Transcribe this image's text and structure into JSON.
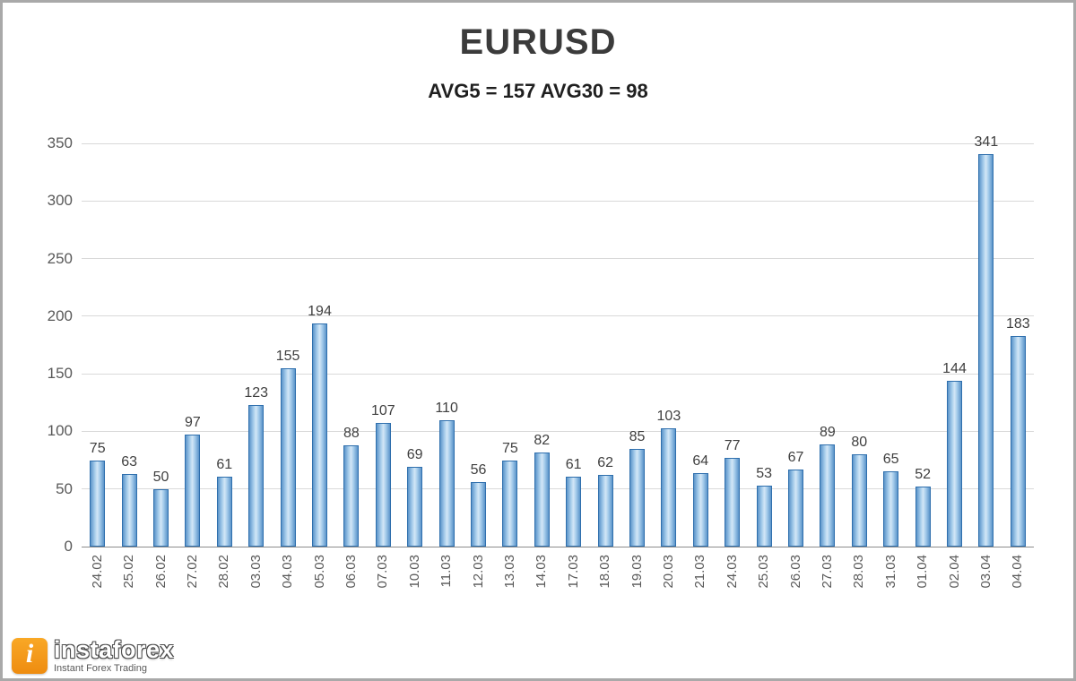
{
  "chart_data": {
    "type": "bar",
    "title": "EURUSD",
    "subtitle": "AVG5 = 157 AVG30 = 98",
    "categories": [
      "24.02",
      "25.02",
      "26.02",
      "27.02",
      "28.02",
      "03.03",
      "04.03",
      "05.03",
      "06.03",
      "07.03",
      "10.03",
      "11.03",
      "12.03",
      "13.03",
      "14.03",
      "17.03",
      "18.03",
      "19.03",
      "20.03",
      "21.03",
      "24.03",
      "25.03",
      "26.03",
      "27.03",
      "28.03",
      "31.03",
      "01.04",
      "02.04",
      "03.04",
      "04.04"
    ],
    "values": [
      75,
      63,
      50,
      97,
      61,
      123,
      155,
      194,
      88,
      107,
      69,
      110,
      56,
      75,
      82,
      61,
      62,
      85,
      103,
      64,
      77,
      53,
      67,
      89,
      80,
      65,
      52,
      144,
      341,
      183
    ],
    "xlabel": "",
    "ylabel": "",
    "ylim": [
      0,
      350
    ],
    "yticks": [
      0,
      50,
      100,
      150,
      200,
      250,
      300,
      350
    ],
    "grid": true,
    "legend": false,
    "bar_fill": "#9ec7e8",
    "bar_border": "#2f6fad",
    "data_label_color": "#3f3f3f"
  },
  "watermark": {
    "brand": "instaforex",
    "tagline": "Instant Forex Trading",
    "logo_color": "#f6921e",
    "logo_glyph": "i"
  }
}
